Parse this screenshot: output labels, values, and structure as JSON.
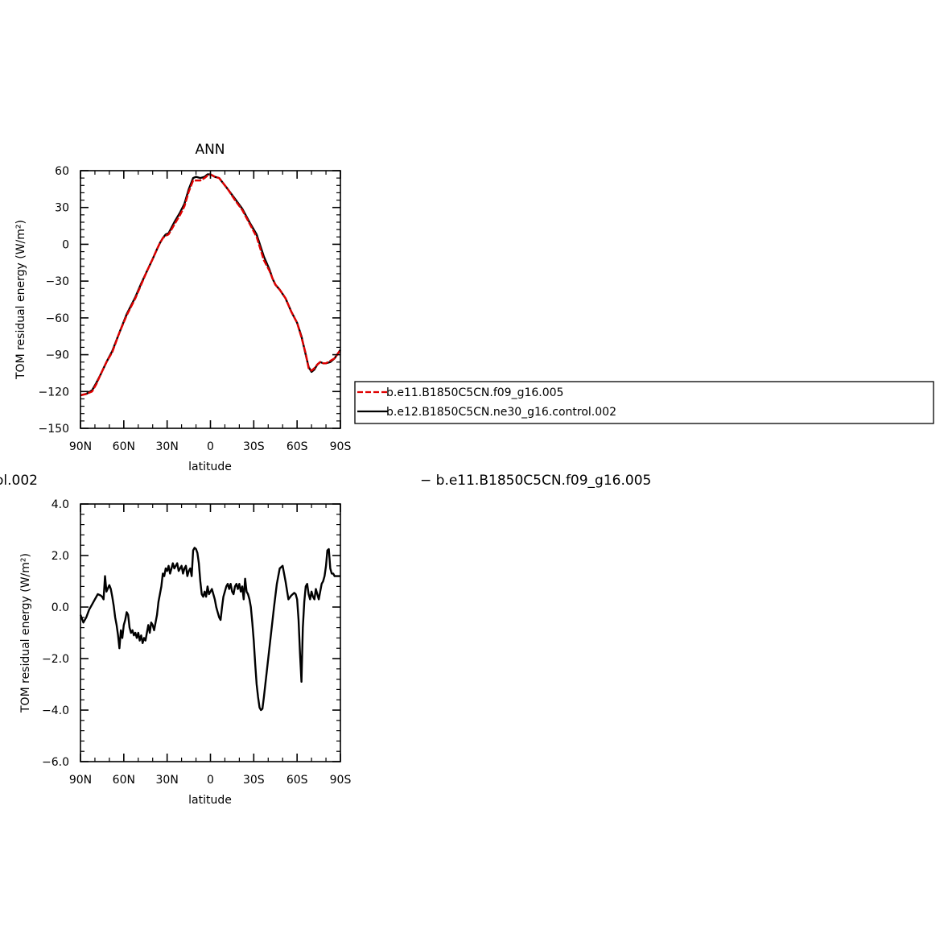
{
  "colors": {
    "red_series": "#e00000",
    "black_series": "#000000",
    "frame": "#000000"
  },
  "legend": {
    "entries": [
      {
        "label": "b.e11.B1850C5CN.f09_g16.005",
        "color": "#e00000",
        "dash": true
      },
      {
        "label": "b.e12.B1850C5CN.ne30_g16.control.002",
        "color": "#000000",
        "dash": false
      }
    ]
  },
  "diff_title": {
    "left": "ol.002",
    "right": "− b.e11.B1850C5CN.f09_g16.005"
  },
  "chart_data": [
    {
      "type": "line",
      "title": "ANN",
      "xlabel": "latitude",
      "ylabel": "TOM residual energy (W/m²)",
      "xlim": [
        90,
        -90
      ],
      "ylim": [
        -150,
        60
      ],
      "xticks": [
        90,
        60,
        30,
        0,
        -30,
        -60,
        -90
      ],
      "xtick_labels": [
        "90N",
        "60N",
        "30N",
        "0",
        "30S",
        "60S",
        "90S"
      ],
      "yticks": [
        60,
        30,
        0,
        -30,
        -60,
        -90,
        -120,
        -150
      ],
      "ytick_labels": [
        "60",
        "30",
        "0",
        "−30",
        "−60",
        "−90",
        "−120",
        "−150"
      ],
      "series": [
        {
          "name": "b.e12.B1850C5CN.ne30_g16.control.002",
          "color": "#000000",
          "x": [
            90,
            86,
            82,
            79,
            76,
            72,
            68,
            63,
            58,
            52,
            48,
            44,
            40,
            37,
            35,
            33,
            31,
            29,
            25,
            21,
            18,
            15,
            12,
            10,
            7,
            4,
            2,
            0,
            -3,
            -6,
            -8,
            -12,
            -17,
            -22,
            -27,
            -32,
            -37,
            -41,
            -43,
            -45,
            -48,
            -52,
            -56,
            -60,
            -63,
            -66,
            -68,
            -70,
            -72,
            -74,
            -76,
            -78,
            -80,
            -83,
            -86,
            -90
          ],
          "y": [
            -123,
            -122,
            -119,
            -113,
            -106,
            -96,
            -87,
            -72,
            -57,
            -43,
            -32,
            -22,
            -12,
            -4,
            1,
            5,
            8,
            9,
            18,
            26,
            33,
            45,
            54,
            55,
            54,
            55,
            57,
            57,
            55,
            54,
            51,
            45,
            37,
            29,
            18,
            8,
            -10,
            -21,
            -28,
            -33,
            -37,
            -44,
            -55,
            -64,
            -75,
            -90,
            -100,
            -104,
            -102,
            -98,
            -96,
            -97,
            -97,
            -96,
            -93,
            -86
          ]
        },
        {
          "name": "b.e11.B1850C5CN.f09_g16.005",
          "color": "#e00000",
          "x": [
            90,
            86,
            82,
            79,
            76,
            72,
            68,
            63,
            58,
            52,
            48,
            44,
            40,
            37,
            35,
            33,
            31,
            29,
            25,
            21,
            18,
            15,
            12,
            10,
            7,
            4,
            2,
            0,
            -3,
            -6,
            -8,
            -12,
            -17,
            -22,
            -27,
            -32,
            -37,
            -41,
            -43,
            -45,
            -48,
            -52,
            -56,
            -60,
            -63,
            -66,
            -68,
            -70,
            -72,
            -74,
            -76,
            -78,
            -80,
            -83,
            -86,
            -90
          ],
          "y": [
            -123,
            -122,
            -120,
            -114,
            -106,
            -96,
            -88,
            -72,
            -58,
            -44,
            -33,
            -22,
            -12,
            -4,
            1,
            5,
            7,
            8,
            16,
            24,
            31,
            43,
            52,
            52,
            52,
            54,
            56,
            57,
            55,
            54,
            51,
            45,
            36,
            28,
            17,
            6,
            -13,
            -22,
            -28,
            -33,
            -37,
            -44,
            -55,
            -64,
            -76,
            -89,
            -101,
            -103,
            -101,
            -98,
            -96,
            -97,
            -97,
            -95,
            -93,
            -86
          ]
        }
      ]
    },
    {
      "type": "line",
      "title": "",
      "xlabel": "latitude",
      "ylabel": "TOM residual energy (W/m²)",
      "xlim": [
        90,
        -90
      ],
      "ylim": [
        -6,
        4
      ],
      "xticks": [
        90,
        60,
        30,
        0,
        -30,
        -60,
        -90
      ],
      "xtick_labels": [
        "90N",
        "60N",
        "30N",
        "0",
        "30S",
        "60S",
        "90S"
      ],
      "yticks": [
        4,
        2,
        0,
        -2,
        -4,
        -6
      ],
      "ytick_labels": [
        "4.0",
        "2.0",
        "0.0",
        "−2.0",
        "−4.0",
        "−6.0"
      ],
      "series": [
        {
          "name": "",
          "color": "#000000",
          "x": [
            90,
            88,
            86,
            84,
            82,
            80,
            78,
            76,
            75,
            74,
            73,
            72,
            70,
            69,
            68,
            67,
            66,
            65,
            64,
            63,
            62,
            61,
            60,
            59,
            58,
            57,
            56,
            55,
            54,
            53,
            52,
            51,
            50,
            49,
            48,
            47,
            46,
            45,
            44,
            43,
            42,
            41,
            40,
            39,
            38,
            37,
            36,
            35,
            34,
            33,
            32,
            31,
            30,
            29,
            28,
            27,
            26,
            25,
            24,
            23,
            22,
            21,
            20,
            19,
            18,
            17,
            16,
            15,
            14,
            13,
            12,
            11,
            10,
            9,
            8,
            7,
            6,
            5,
            4,
            3,
            2,
            1,
            0,
            -1,
            -2,
            -3,
            -4,
            -5,
            -6,
            -7,
            -8,
            -9,
            -10,
            -11,
            -12,
            -13,
            -14,
            -15,
            -16,
            -17,
            -18,
            -19,
            -20,
            -21,
            -22,
            -23,
            -24,
            -25,
            -26,
            -27,
            -28,
            -29,
            -30,
            -31,
            -32,
            -33,
            -34,
            -35,
            -36,
            -37,
            -38,
            -39,
            -40,
            -42,
            -44,
            -46,
            -48,
            -50,
            -52,
            -54,
            -56,
            -58,
            -59,
            -60,
            -61,
            -62,
            -63,
            -64,
            -65,
            -66,
            -67,
            -68,
            -69,
            -70,
            -71,
            -72,
            -73,
            -74,
            -75,
            -76,
            -77,
            -78,
            -79,
            -80,
            -81,
            -82,
            -83,
            -84,
            -85,
            -86,
            -87,
            -88,
            -89,
            -90
          ],
          "y": [
            -0.3,
            -0.6,
            -0.4,
            -0.1,
            0.1,
            0.3,
            0.5,
            0.45,
            0.4,
            0.3,
            1.2,
            0.6,
            0.85,
            0.7,
            0.4,
            0.05,
            -0.4,
            -0.7,
            -1.1,
            -1.6,
            -0.9,
            -1.2,
            -0.7,
            -0.5,
            -0.2,
            -0.3,
            -0.8,
            -1.0,
            -0.9,
            -1.1,
            -1.0,
            -1.2,
            -1.0,
            -1.3,
            -1.1,
            -1.4,
            -1.2,
            -1.3,
            -1.0,
            -0.7,
            -1.0,
            -0.6,
            -0.7,
            -0.9,
            -0.6,
            -0.3,
            0.2,
            0.5,
            0.8,
            1.3,
            1.2,
            1.5,
            1.4,
            1.6,
            1.3,
            1.5,
            1.7,
            1.5,
            1.6,
            1.7,
            1.4,
            1.5,
            1.6,
            1.3,
            1.5,
            1.6,
            1.2,
            1.4,
            1.5,
            1.2,
            2.2,
            2.3,
            2.25,
            2.1,
            1.7,
            1.0,
            0.5,
            0.4,
            0.6,
            0.4,
            0.8,
            0.5,
            0.6,
            0.7,
            0.5,
            0.3,
            0.0,
            -0.2,
            -0.4,
            -0.5,
            0.0,
            0.4,
            0.6,
            0.8,
            0.9,
            0.7,
            0.9,
            0.6,
            0.5,
            0.8,
            0.9,
            0.7,
            0.9,
            0.6,
            0.8,
            0.3,
            1.1,
            0.6,
            0.5,
            0.3,
            0.0,
            -0.6,
            -1.3,
            -2.2,
            -3.0,
            -3.5,
            -3.9,
            -4.0,
            -3.95,
            -3.5,
            -3.0,
            -2.5,
            -2.0,
            -1.0,
            0.0,
            0.9,
            1.5,
            1.6,
            1.0,
            0.3,
            0.45,
            0.55,
            0.5,
            0.3,
            -0.5,
            -1.8,
            -2.9,
            -0.8,
            0.2,
            0.8,
            0.9,
            0.5,
            0.3,
            0.6,
            0.4,
            0.3,
            0.7,
            0.5,
            0.3,
            0.6,
            0.9,
            1.0,
            1.2,
            1.6,
            2.2,
            2.25,
            1.5,
            1.3,
            1.3,
            1.2,
            1.2,
            1.2,
            1.2,
            1.2
          ]
        }
      ]
    }
  ]
}
